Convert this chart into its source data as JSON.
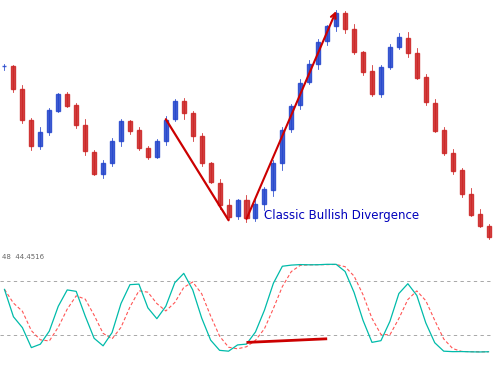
{
  "bg_color": "#ffffff",
  "candle_chart_bg": "#ffffff",
  "indicator_bg": "#ffffff",
  "separator_color": "#444444",
  "annotation_text": "Classic Bullish Divergence",
  "annotation_color": "#0000bb",
  "annotation_fontsize": 8.5,
  "arrow_color": "#cc0000",
  "stoch_k_color": "#00bbaa",
  "stoch_d_color": "#ff5555",
  "stoch_upper_level": 80,
  "stoch_lower_level": 20,
  "label_text": "48  44.4516",
  "label_fontsize": 5,
  "bull_color": "#2244cc",
  "bear_color": "#cc2222",
  "candle_alpha": 0.85,
  "price_shape": [
    100,
    96,
    90,
    85,
    88,
    92,
    95,
    93,
    89,
    84,
    80,
    82,
    86,
    90,
    88,
    85,
    83,
    86,
    90,
    94,
    91,
    87,
    82,
    78,
    74,
    72,
    75,
    72,
    74,
    77,
    82,
    88,
    93,
    97,
    101,
    105,
    108,
    110,
    107,
    103,
    99,
    95,
    100,
    104,
    106,
    103,
    98,
    93,
    88,
    84,
    80,
    76,
    72,
    70,
    68
  ],
  "n_candles": 55
}
